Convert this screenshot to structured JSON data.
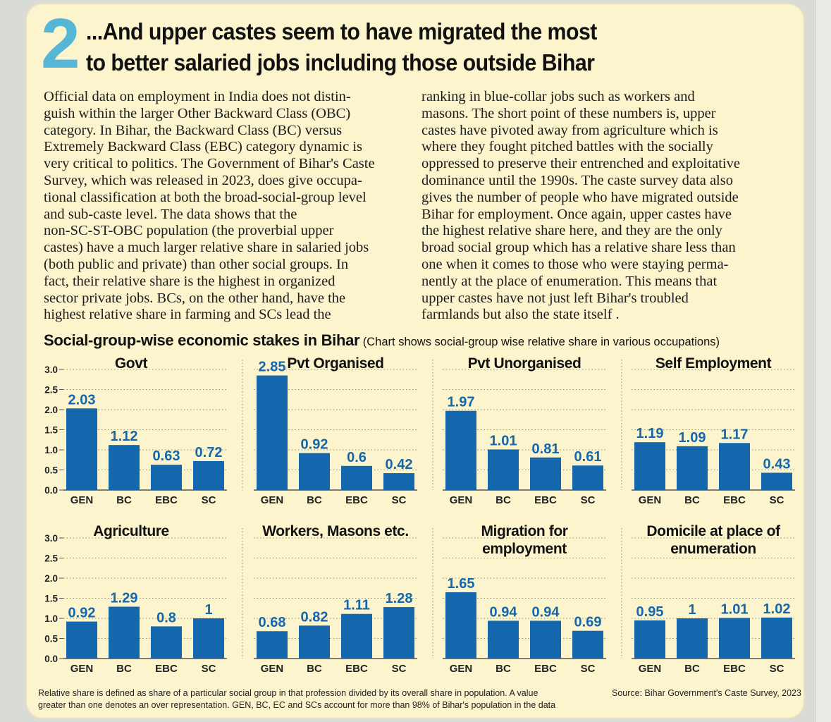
{
  "section_number": "2",
  "headline": {
    "line1": "...And upper castes seem to have migrated the most",
    "line2": "to better salaried jobs including those outside Bihar"
  },
  "body_left": [
    "Official data on employment in India does not distin-",
    "guish within the larger Other Backward Class (OBC)",
    "category. In Bihar, the Backward Class (BC) versus",
    "Extremely Backward Class (EBC) category dynamic is",
    "very critical to politics. The Government of Bihar's Caste",
    "Survey, which was released in 2023, does give occupa-",
    "tional classification at both the broad-social-group level",
    "and sub-caste level. The data shows that the",
    "non-SC-ST-OBC population (the proverbial upper",
    "castes) have a much larger relative share in salaried jobs",
    "(both public and private) than other social groups. In",
    "fact, their relative share is the highest in organized",
    "sector private jobs. BCs, on the other hand, have the",
    "highest relative share in farming and SCs lead the"
  ],
  "body_right": [
    "ranking in blue-collar jobs such as workers and",
    "masons. The short point of these numbers is, upper",
    "castes have pivoted away from agriculture which is",
    "where they fought pitched battles with the socially",
    "oppressed to preserve their entrenched and exploitative",
    "dominance until the 1990s. The caste survey data also",
    "gives the number of people who have migrated outside",
    "Bihar for employment. Once again, upper castes have",
    "the highest relative share here, and they are the only",
    "broad social group which has a relative share less than",
    "one when it comes to those who were staying perma-",
    "nently at the place of enumeration. This means that",
    "upper castes have not just left Bihar's troubled",
    "farmlands but also the state itself ."
  ],
  "chart_section": {
    "title": "Social-group-wise economic stakes in Bihar",
    "note": "(Chart shows social-group wise relative share in various occupations)"
  },
  "footnote": {
    "line1": "Relative share is defined as share of a particular social group in that profession divided by its overall share in population. A value",
    "line2": "greater than one denotes an over representation. GEN, BC, EC and SCs account for more than 98% of Bihar's population in the data",
    "source": "Source: Bihar Government's Caste Survey, 2023"
  },
  "colors": {
    "bar": "#1467ad",
    "label": "#1467ad",
    "background": "#fbf4cc",
    "accent_number": "#56b6d6"
  },
  "chart_data": [
    {
      "type": "bar",
      "title": [
        "Govt"
      ],
      "categories": [
        "GEN",
        "BC",
        "EBC",
        "SC"
      ],
      "values": [
        2.03,
        1.12,
        0.63,
        0.72
      ],
      "ylim": [
        0,
        3
      ],
      "yticks": [
        "0.0",
        "0.5",
        "1.0",
        "1.5",
        "2.0",
        "2.5",
        "3.0"
      ]
    },
    {
      "type": "bar",
      "title": [
        "Pvt Organised"
      ],
      "categories": [
        "GEN",
        "BC",
        "EBC",
        "SC"
      ],
      "values": [
        2.85,
        0.92,
        0.6,
        0.42
      ],
      "ylim": [
        0,
        3
      ]
    },
    {
      "type": "bar",
      "title": [
        "Pvt Unorganised"
      ],
      "categories": [
        "GEN",
        "BC",
        "EBC",
        "SC"
      ],
      "values": [
        1.97,
        1.01,
        0.81,
        0.61
      ],
      "ylim": [
        0,
        3
      ]
    },
    {
      "type": "bar",
      "title": [
        "Self Employment"
      ],
      "categories": [
        "GEN",
        "BC",
        "EBC",
        "SC"
      ],
      "values": [
        1.19,
        1.09,
        1.17,
        0.43
      ],
      "ylim": [
        0,
        3
      ]
    },
    {
      "type": "bar",
      "title": [
        "Agriculture"
      ],
      "categories": [
        "GEN",
        "BC",
        "EBC",
        "SC"
      ],
      "values": [
        0.92,
        1.29,
        0.8,
        1
      ],
      "ylim": [
        0,
        3
      ],
      "yticks": [
        "0.0",
        "0.5",
        "1.0",
        "1.5",
        "2.0",
        "2.5",
        "3.0"
      ]
    },
    {
      "type": "bar",
      "title": [
        "Workers, Masons etc."
      ],
      "categories": [
        "GEN",
        "BC",
        "EBC",
        "SC"
      ],
      "values": [
        0.68,
        0.82,
        1.11,
        1.28
      ],
      "ylim": [
        0,
        3
      ]
    },
    {
      "type": "bar",
      "title": [
        "Migration for",
        "employment"
      ],
      "categories": [
        "GEN",
        "BC",
        "EBC",
        "SC"
      ],
      "values": [
        1.65,
        0.94,
        0.94,
        0.69
      ],
      "ylim": [
        0,
        3
      ]
    },
    {
      "type": "bar",
      "title": [
        "Domicile at place of",
        "enumeration"
      ],
      "categories": [
        "GEN",
        "BC",
        "EBC",
        "SC"
      ],
      "values": [
        0.95,
        1,
        1.01,
        1.02
      ],
      "ylim": [
        0,
        3
      ]
    }
  ]
}
